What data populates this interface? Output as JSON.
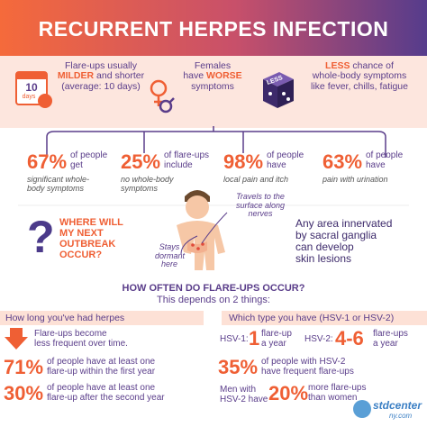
{
  "header": {
    "title": "RECURRENT HERPES INFECTION"
  },
  "facts": [
    {
      "icon_number": "10",
      "icon_unit": "days",
      "line1": "Flare-ups usually",
      "emph": "MILDER",
      "line2": "and shorter",
      "line3": "(average: 10 days)"
    },
    {
      "line1": "Females",
      "line2": "have",
      "emph": "WORSE",
      "line3": "symptoms"
    },
    {
      "icon_text": "LESS",
      "emph": "LESS",
      "line1": "chance of",
      "line2": "whole-body symptoms",
      "line3": "like fever, chills, fatigue"
    }
  ],
  "stats": [
    {
      "value": "67%",
      "label": [
        "of people",
        "get"
      ],
      "note": [
        "significant whole-",
        "body symptoms"
      ]
    },
    {
      "value": "25%",
      "label": [
        "of flare-ups",
        "include"
      ],
      "note": [
        "no whole-body",
        "symptoms"
      ]
    },
    {
      "value": "98%",
      "label": [
        "of people",
        "have"
      ],
      "note": [
        "local pain and itch"
      ]
    },
    {
      "value": "63%",
      "label": [
        "of people",
        "have"
      ],
      "note": [
        "pain with urination"
      ]
    }
  ],
  "outbreak": {
    "symbol": "?",
    "question": [
      "WHERE WILL",
      "MY NEXT",
      "OUTBREAK",
      "OCCUR?"
    ],
    "dormant": [
      "Stays",
      "dormant",
      "here"
    ],
    "travels": [
      "Travels to the",
      "surface along",
      "nerves"
    ],
    "answer": [
      "Any area innervated",
      "by sacral ganglia",
      "can develop",
      "skin lesions"
    ]
  },
  "frequency": {
    "title": "HOW OFTEN DO FLARE-UPS OCCUR?",
    "subtitle": "This depends on 2 things:",
    "left": {
      "heading": "How long you've had herpes",
      "trend": [
        "Flare-ups become",
        "less frequent over time."
      ],
      "stats": [
        {
          "value": "71%",
          "text": [
            "of people have at least one",
            "flare-up within the first year"
          ]
        },
        {
          "value": "30%",
          "text": [
            "of people have at least one",
            "flare-up after the second year"
          ]
        }
      ]
    },
    "right": {
      "heading": "Which type you have (HSV-1 or HSV-2)",
      "hsv1": {
        "label": "HSV-1:",
        "value": "1",
        "text": [
          "flare-up",
          "a year"
        ]
      },
      "hsv2": {
        "label": "HSV-2:",
        "value": "4-6",
        "text": [
          "flare-ups",
          "a year"
        ]
      },
      "frequent": {
        "value": "35%",
        "text": [
          "of people with HSV-2",
          "have frequent flare-ups"
        ]
      },
      "men": {
        "pre": [
          "Men with",
          "HSV-2 have"
        ],
        "value": "20%",
        "text": [
          "more flare-ups",
          "than women"
        ]
      }
    }
  },
  "logo": {
    "name": "stdcenter",
    "domain": "ny.com"
  }
}
